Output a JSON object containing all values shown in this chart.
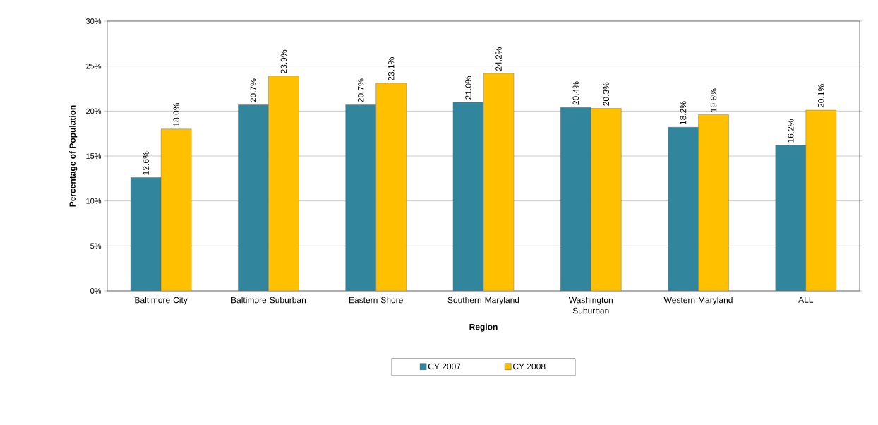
{
  "chart_data": {
    "type": "bar",
    "xlabel": "Region",
    "ylabel": "Percentage of Population",
    "categories": [
      "Baltimore City",
      "Baltimore Suburban",
      "Eastern Shore",
      "Southern Maryland",
      "Washington Suburban",
      "Western Maryland",
      "ALL"
    ],
    "series": [
      {
        "name": "CY 2007",
        "color": "#31859c",
        "values": [
          12.6,
          20.7,
          20.7,
          21.0,
          20.4,
          18.2,
          16.2
        ],
        "value_labels": [
          "12.6%",
          "20.7%",
          "20.7%",
          "21.0%",
          "20.4%",
          "18.2%",
          "16.2%"
        ]
      },
      {
        "name": "CY 2008",
        "color": "#ffc000",
        "values": [
          18.0,
          23.9,
          23.1,
          24.2,
          20.3,
          19.6,
          20.1
        ],
        "value_labels": [
          "18.0%",
          "23.9%",
          "23.1%",
          "24.2%",
          "20.3%",
          "19.6%",
          "20.1%"
        ]
      }
    ],
    "ylim": [
      0,
      30
    ],
    "yticks": [
      {
        "value": 0,
        "label": "0%"
      },
      {
        "value": 5,
        "label": "5%"
      },
      {
        "value": 10,
        "label": "10%"
      },
      {
        "value": 15,
        "label": "15%"
      },
      {
        "value": 20,
        "label": "20%"
      },
      {
        "value": 25,
        "label": "25%"
      },
      {
        "value": 30,
        "label": "30%"
      }
    ],
    "grid": "y",
    "legend": "bottom"
  }
}
